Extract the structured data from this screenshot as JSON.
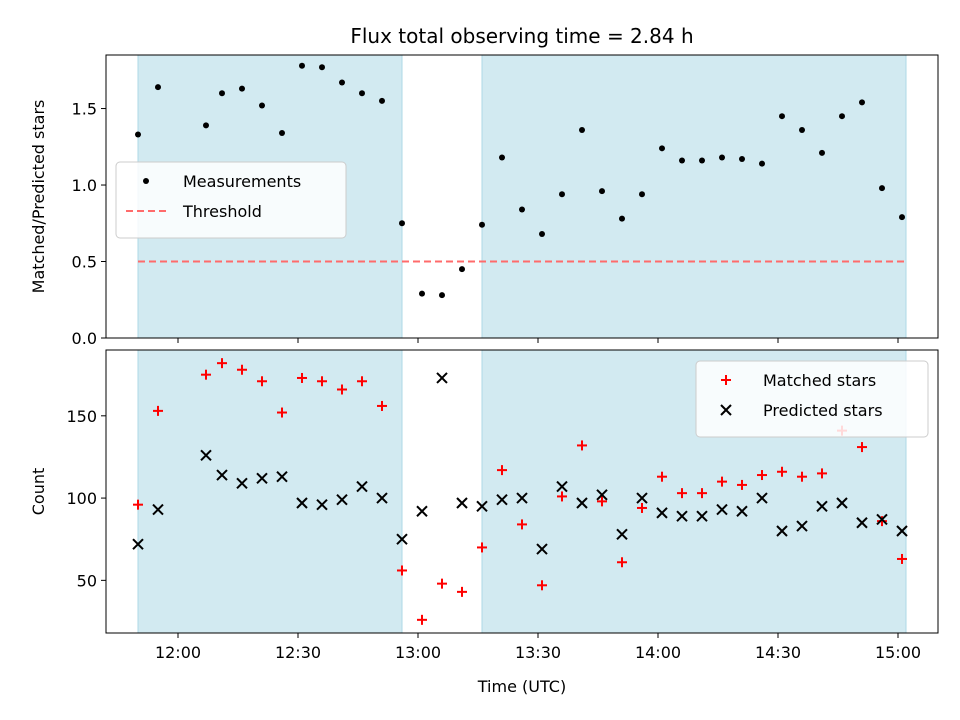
{
  "chart_data": {
    "type": "scatter",
    "title": "Flux total observing time = 2.84 h",
    "xlabel": "Time (UTC)",
    "xticks": [
      "12:00",
      "12:30",
      "13:00",
      "13:30",
      "14:00",
      "14:30",
      "15:00"
    ],
    "x_range": [
      "11:42",
      "15:10"
    ],
    "shaded_intervals": [
      [
        "11:50",
        "12:56"
      ],
      [
        "13:16",
        "15:02"
      ]
    ],
    "colors": {
      "shade": "#add8e6",
      "measurements": "#000000",
      "threshold": "#ff6b6b",
      "matched": "#ff0000",
      "predicted": "#000000"
    },
    "panels": [
      {
        "ylabel": "Matched/Predicted stars",
        "ylim": [
          0,
          1.85
        ],
        "yticks": [
          0.0,
          0.5,
          1.0,
          1.5
        ],
        "ytick_labels": [
          "0.0",
          "0.5",
          "1.0",
          "1.5"
        ],
        "legend_position": "center-left",
        "threshold": {
          "name": "Threshold",
          "y": 0.5
        },
        "series": [
          {
            "name": "Measurements",
            "marker": "dot",
            "points": [
              [
                "11:50",
                1.33
              ],
              [
                "11:55",
                1.64
              ],
              [
                "12:07",
                1.39
              ],
              [
                "12:11",
                1.6
              ],
              [
                "12:16",
                1.63
              ],
              [
                "12:21",
                1.52
              ],
              [
                "12:26",
                1.34
              ],
              [
                "12:31",
                1.78
              ],
              [
                "12:36",
                1.77
              ],
              [
                "12:41",
                1.67
              ],
              [
                "12:46",
                1.6
              ],
              [
                "12:51",
                1.55
              ],
              [
                "12:56",
                0.75
              ],
              [
                "13:01",
                0.29
              ],
              [
                "13:06",
                0.28
              ],
              [
                "13:11",
                0.45
              ],
              [
                "13:16",
                0.74
              ],
              [
                "13:21",
                1.18
              ],
              [
                "13:26",
                0.84
              ],
              [
                "13:31",
                0.68
              ],
              [
                "13:36",
                0.94
              ],
              [
                "13:41",
                1.36
              ],
              [
                "13:46",
                0.96
              ],
              [
                "13:51",
                0.78
              ],
              [
                "13:56",
                0.94
              ],
              [
                "14:01",
                1.24
              ],
              [
                "14:06",
                1.16
              ],
              [
                "14:11",
                1.16
              ],
              [
                "14:16",
                1.18
              ],
              [
                "14:21",
                1.17
              ],
              [
                "14:26",
                1.14
              ],
              [
                "14:31",
                1.45
              ],
              [
                "14:36",
                1.36
              ],
              [
                "14:41",
                1.21
              ],
              [
                "14:46",
                1.45
              ],
              [
                "14:51",
                1.54
              ],
              [
                "14:56",
                0.98
              ],
              [
                "15:01",
                0.79
              ]
            ]
          }
        ]
      },
      {
        "ylabel": "Count",
        "ylim": [
          18,
          190
        ],
        "yticks": [
          50,
          100,
          150
        ],
        "ytick_labels": [
          "50",
          "100",
          "150"
        ],
        "legend_position": "upper-right",
        "series": [
          {
            "name": "Matched stars",
            "marker": "plus",
            "points": [
              [
                "11:50",
                96
              ],
              [
                "11:55",
                153
              ],
              [
                "12:07",
                175
              ],
              [
                "12:11",
                182
              ],
              [
                "12:16",
                178
              ],
              [
                "12:21",
                171
              ],
              [
                "12:26",
                152
              ],
              [
                "12:31",
                173
              ],
              [
                "12:36",
                171
              ],
              [
                "12:41",
                166
              ],
              [
                "12:46",
                171
              ],
              [
                "12:51",
                156
              ],
              [
                "12:56",
                56
              ],
              [
                "13:01",
                26
              ],
              [
                "13:06",
                48
              ],
              [
                "13:11",
                43
              ],
              [
                "13:16",
                70
              ],
              [
                "13:21",
                117
              ],
              [
                "13:26",
                84
              ],
              [
                "13:31",
                47
              ],
              [
                "13:36",
                101
              ],
              [
                "13:41",
                132
              ],
              [
                "13:46",
                98
              ],
              [
                "13:51",
                61
              ],
              [
                "13:56",
                94
              ],
              [
                "14:01",
                113
              ],
              [
                "14:06",
                103
              ],
              [
                "14:11",
                103
              ],
              [
                "14:16",
                110
              ],
              [
                "14:21",
                108
              ],
              [
                "14:26",
                114
              ],
              [
                "14:31",
                116
              ],
              [
                "14:36",
                113
              ],
              [
                "14:41",
                115
              ],
              [
                "14:46",
                141
              ],
              [
                "14:51",
                131
              ],
              [
                "14:56",
                86
              ],
              [
                "15:01",
                63
              ]
            ]
          },
          {
            "name": "Predicted stars",
            "marker": "x",
            "points": [
              [
                "11:50",
                72
              ],
              [
                "11:55",
                93
              ],
              [
                "12:07",
                126
              ],
              [
                "12:11",
                114
              ],
              [
                "12:16",
                109
              ],
              [
                "12:21",
                112
              ],
              [
                "12:26",
                113
              ],
              [
                "12:31",
                97
              ],
              [
                "12:36",
                96
              ],
              [
                "12:41",
                99
              ],
              [
                "12:46",
                107
              ],
              [
                "12:51",
                100
              ],
              [
                "12:56",
                75
              ],
              [
                "13:01",
                92
              ],
              [
                "13:06",
                173
              ],
              [
                "13:11",
                97
              ],
              [
                "13:16",
                95
              ],
              [
                "13:21",
                99
              ],
              [
                "13:26",
                100
              ],
              [
                "13:31",
                69
              ],
              [
                "13:36",
                107
              ],
              [
                "13:41",
                97
              ],
              [
                "13:46",
                102
              ],
              [
                "13:51",
                78
              ],
              [
                "13:56",
                100
              ],
              [
                "14:01",
                91
              ],
              [
                "14:06",
                89
              ],
              [
                "14:11",
                89
              ],
              [
                "14:16",
                93
              ],
              [
                "14:21",
                92
              ],
              [
                "14:26",
                100
              ],
              [
                "14:31",
                80
              ],
              [
                "14:36",
                83
              ],
              [
                "14:41",
                95
              ],
              [
                "14:46",
                97
              ],
              [
                "14:51",
                85
              ],
              [
                "14:56",
                87
              ],
              [
                "15:01",
                80
              ]
            ]
          }
        ]
      }
    ]
  }
}
